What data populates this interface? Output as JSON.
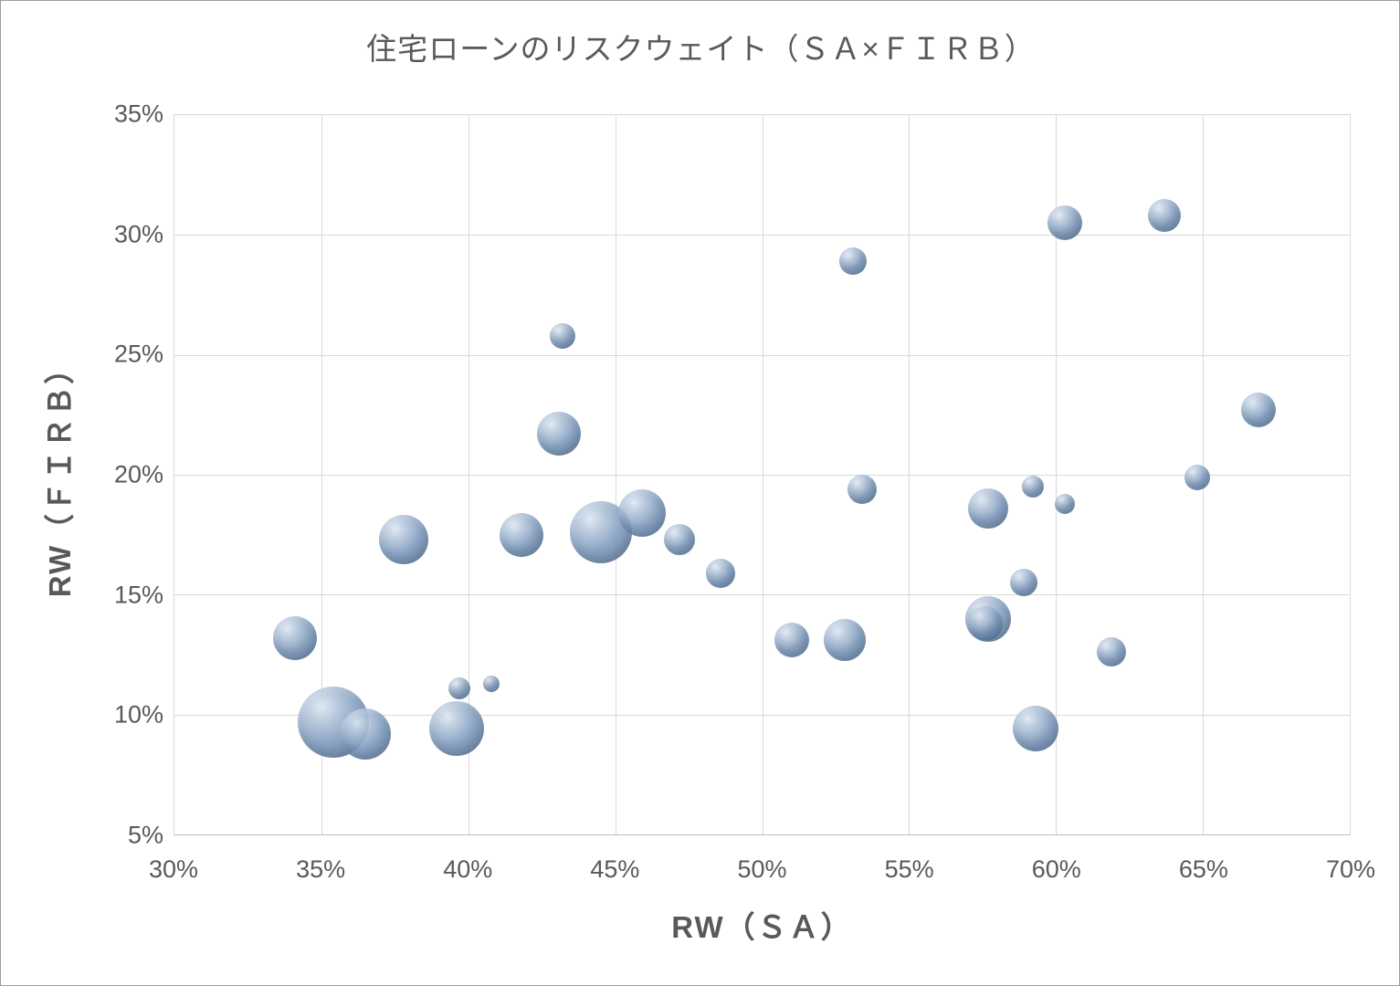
{
  "chart": {
    "title": "住宅ローンのリスクウェイト（ＳＡ×ＦＩＲＢ）",
    "x_axis_title": "RW（ＳＡ）",
    "y_axis_title": "RW（ＦＩＲＢ）"
  },
  "chart_data": {
    "type": "scatter",
    "variant": "bubble",
    "title": "住宅ローンのリスクウェイト（ＳＡ×ＦＩＲＢ）",
    "xlabel": "RW（ＳＡ）",
    "ylabel": "RW（ＦＩＲＢ）",
    "xlim": [
      30,
      70
    ],
    "ylim": [
      5,
      35
    ],
    "x_ticks": [
      30,
      35,
      40,
      45,
      50,
      55,
      60,
      65,
      70
    ],
    "x_tick_labels": [
      "30%",
      "35%",
      "40%",
      "45%",
      "50%",
      "55%",
      "60%",
      "65%",
      "70%"
    ],
    "y_ticks": [
      5,
      10,
      15,
      20,
      25,
      30,
      35
    ],
    "y_tick_labels": [
      "5%",
      "10%",
      "15%",
      "20%",
      "25%",
      "30%",
      "35%"
    ],
    "grid": true,
    "legend": "none",
    "points": [
      {
        "x": 34.1,
        "y": 13.2,
        "r": 24
      },
      {
        "x": 35.4,
        "y": 9.7,
        "r": 39
      },
      {
        "x": 36.5,
        "y": 9.2,
        "r": 28
      },
      {
        "x": 37.8,
        "y": 17.3,
        "r": 27
      },
      {
        "x": 39.6,
        "y": 9.4,
        "r": 30
      },
      {
        "x": 39.7,
        "y": 11.1,
        "r": 12
      },
      {
        "x": 40.8,
        "y": 11.3,
        "r": 9
      },
      {
        "x": 41.8,
        "y": 17.5,
        "r": 24
      },
      {
        "x": 43.2,
        "y": 25.8,
        "r": 14
      },
      {
        "x": 43.1,
        "y": 21.7,
        "r": 24
      },
      {
        "x": 44.5,
        "y": 17.6,
        "r": 34
      },
      {
        "x": 45.9,
        "y": 18.4,
        "r": 26
      },
      {
        "x": 47.2,
        "y": 17.3,
        "r": 17
      },
      {
        "x": 48.6,
        "y": 15.9,
        "r": 16
      },
      {
        "x": 51.0,
        "y": 13.1,
        "r": 19
      },
      {
        "x": 52.8,
        "y": 13.1,
        "r": 23
      },
      {
        "x": 53.1,
        "y": 28.9,
        "r": 15
      },
      {
        "x": 53.4,
        "y": 19.4,
        "r": 16
      },
      {
        "x": 57.7,
        "y": 18.6,
        "r": 22
      },
      {
        "x": 57.7,
        "y": 14.0,
        "r": 25
      },
      {
        "x": 57.6,
        "y": 13.8,
        "r": 19
      },
      {
        "x": 58.9,
        "y": 15.5,
        "r": 15
      },
      {
        "x": 59.2,
        "y": 19.5,
        "r": 12
      },
      {
        "x": 60.3,
        "y": 30.5,
        "r": 19
      },
      {
        "x": 60.3,
        "y": 18.8,
        "r": 11
      },
      {
        "x": 59.3,
        "y": 9.4,
        "r": 25
      },
      {
        "x": 61.9,
        "y": 12.6,
        "r": 16
      },
      {
        "x": 63.7,
        "y": 30.8,
        "r": 18
      },
      {
        "x": 64.8,
        "y": 19.9,
        "r": 14
      },
      {
        "x": 66.9,
        "y": 22.7,
        "r": 19
      }
    ],
    "colors": {
      "bubble_base": "#7e9abd",
      "bubble_highlight": "#dde8f3",
      "bubble_edge": "#4e6b8e",
      "grid": "#d9d9d9",
      "axis": "#bfbfbf",
      "text": "#595959"
    }
  }
}
